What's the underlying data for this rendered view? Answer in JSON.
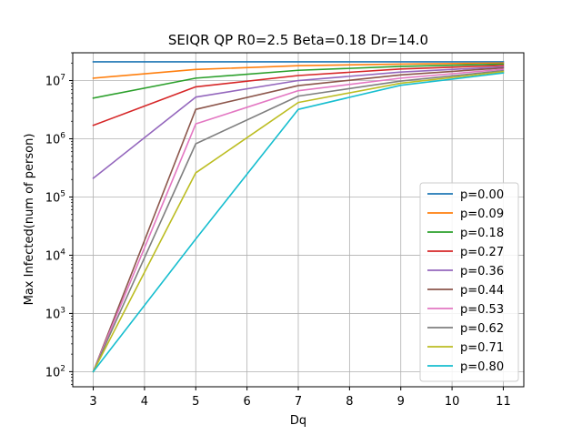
{
  "chart_data": {
    "type": "line",
    "title": "SEIQR QP R0=2.5 Beta=0.18 Dr=14.0",
    "xlabel": "Dq",
    "ylabel": "Max Infected(num of person)",
    "yscale": "log",
    "xlim": [
      2.6,
      11.4
    ],
    "ylim": [
      55,
      30000000
    ],
    "x": [
      3,
      5,
      7,
      9,
      11
    ],
    "x_ticks": [
      3,
      4,
      5,
      6,
      7,
      8,
      9,
      10,
      11
    ],
    "x_tick_labels": [
      "3",
      "4",
      "5",
      "6",
      "7",
      "8",
      "9",
      "10",
      "11"
    ],
    "y_ticks": [
      100,
      1000,
      10000,
      100000,
      1000000,
      10000000
    ],
    "y_tick_labels": [
      {
        "base": "10",
        "exp": "2"
      },
      {
        "base": "10",
        "exp": "3"
      },
      {
        "base": "10",
        "exp": "4"
      },
      {
        "base": "10",
        "exp": "5"
      },
      {
        "base": "10",
        "exp": "6"
      },
      {
        "base": "10",
        "exp": "7"
      }
    ],
    "grid": true,
    "legend_position": "lower right",
    "series": [
      {
        "name": "p=0.00",
        "color": "#1f77b4",
        "values": [
          21000000,
          21000000,
          21000000,
          21000000,
          21000000
        ]
      },
      {
        "name": "p=0.09",
        "color": "#ff7f0e",
        "values": [
          11000000,
          15500000,
          18000000,
          19200000,
          20000000
        ]
      },
      {
        "name": "p=0.18",
        "color": "#2ca02c",
        "values": [
          5000000,
          11000000,
          15000000,
          17500000,
          19200000
        ]
      },
      {
        "name": "p=0.27",
        "color": "#d62728",
        "values": [
          1700000,
          7800000,
          12200000,
          15800000,
          18200000
        ]
      },
      {
        "name": "p=0.36",
        "color": "#9467bd",
        "values": [
          210000,
          5200000,
          10000000,
          14000000,
          17200000
        ]
      },
      {
        "name": "p=0.44",
        "color": "#8c564b",
        "values": [
          100,
          3200000,
          8200000,
          12500000,
          16500000
        ]
      },
      {
        "name": "p=0.53",
        "color": "#e377c2",
        "values": [
          100,
          1800000,
          6700000,
          11000000,
          15600000
        ]
      },
      {
        "name": "p=0.62",
        "color": "#7f7f7f",
        "values": [
          100,
          820000,
          5400000,
          9800000,
          14800000
        ]
      },
      {
        "name": "p=0.71",
        "color": "#bcbd22",
        "values": [
          100,
          260000,
          4200000,
          9000000,
          14200000
        ]
      },
      {
        "name": "p=0.80",
        "color": "#17becf",
        "values": [
          100,
          19000,
          3200000,
          8300000,
          13500000
        ]
      }
    ]
  }
}
